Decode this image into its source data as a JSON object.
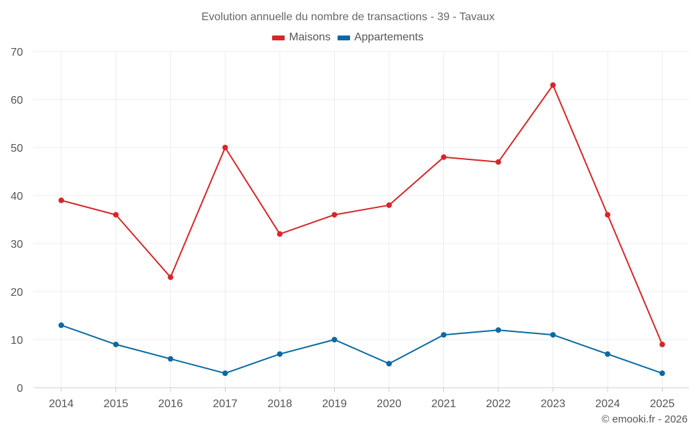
{
  "chart_data": {
    "type": "line",
    "title": "Evolution annuelle du nombre de transactions - 39 - Tavaux",
    "categories": [
      "2014",
      "2015",
      "2016",
      "2017",
      "2018",
      "2019",
      "2020",
      "2021",
      "2022",
      "2023",
      "2024",
      "2025"
    ],
    "series": [
      {
        "name": "Maisons",
        "color": "#d62728",
        "values": [
          39,
          36,
          23,
          50,
          32,
          36,
          38,
          48,
          47,
          63,
          36,
          9
        ]
      },
      {
        "name": "Appartements",
        "color": "#0a6aa1",
        "values": [
          13,
          9,
          6,
          3,
          7,
          10,
          5,
          11,
          12,
          11,
          7,
          3
        ]
      }
    ],
    "ylim": [
      0,
      70
    ],
    "yticks": [
      0,
      10,
      20,
      30,
      40,
      50,
      60,
      70
    ],
    "xlabel": "",
    "ylabel": "",
    "grid": true,
    "legend_position": "top-center"
  },
  "credit": "© emooki.fr - 2026"
}
